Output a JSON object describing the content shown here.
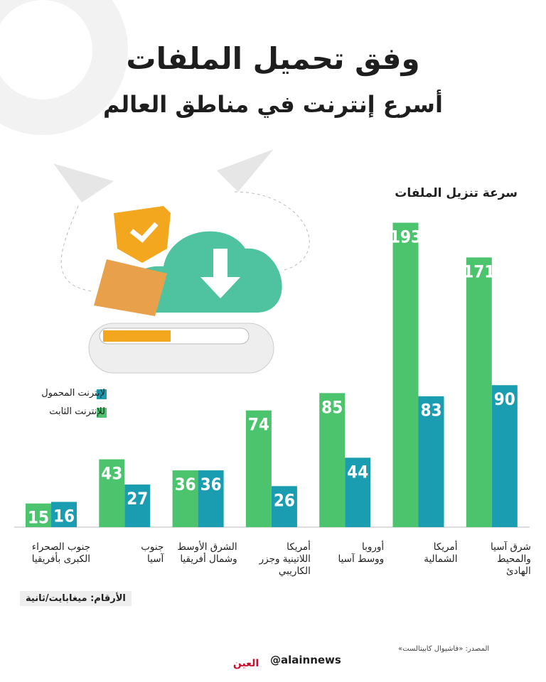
{
  "title": "وفق تحميل الملفات",
  "subtitle": "أسرع إنترنت في مناطق العالم",
  "chart_data": {
    "type": "bar",
    "title": "سرعة تنزيل الملفات",
    "categories": [
      "جنوب الصحراء\nالكبرى بأفريقيا",
      "جنوب\nآسيا",
      "الشرق الأوسط\nوشمال أفريقيا",
      "أمريكا\nاللاتينية وجزر\nالكاريبي",
      "أوروبا\nووسط آسيا",
      "أمريكا\nالشمالية",
      "شرق آسيا\nوالمحيط\nالهادئ"
    ],
    "series": [
      {
        "name": "للإنترنت الثابت",
        "color": "#4cc46e",
        "values": [
          15,
          43,
          36,
          74,
          85,
          193,
          171
        ]
      },
      {
        "name": "لإنترنت المحمول",
        "color": "#1a9db0",
        "values": [
          16,
          27,
          36,
          26,
          44,
          83,
          90
        ]
      }
    ],
    "note": "الأرقام: ميغابايت/ثانية"
  },
  "footer": {
    "source": "المصدر: «فاشيوال كابيتالست»",
    "handle": "@alainnews",
    "logo": "العين"
  }
}
